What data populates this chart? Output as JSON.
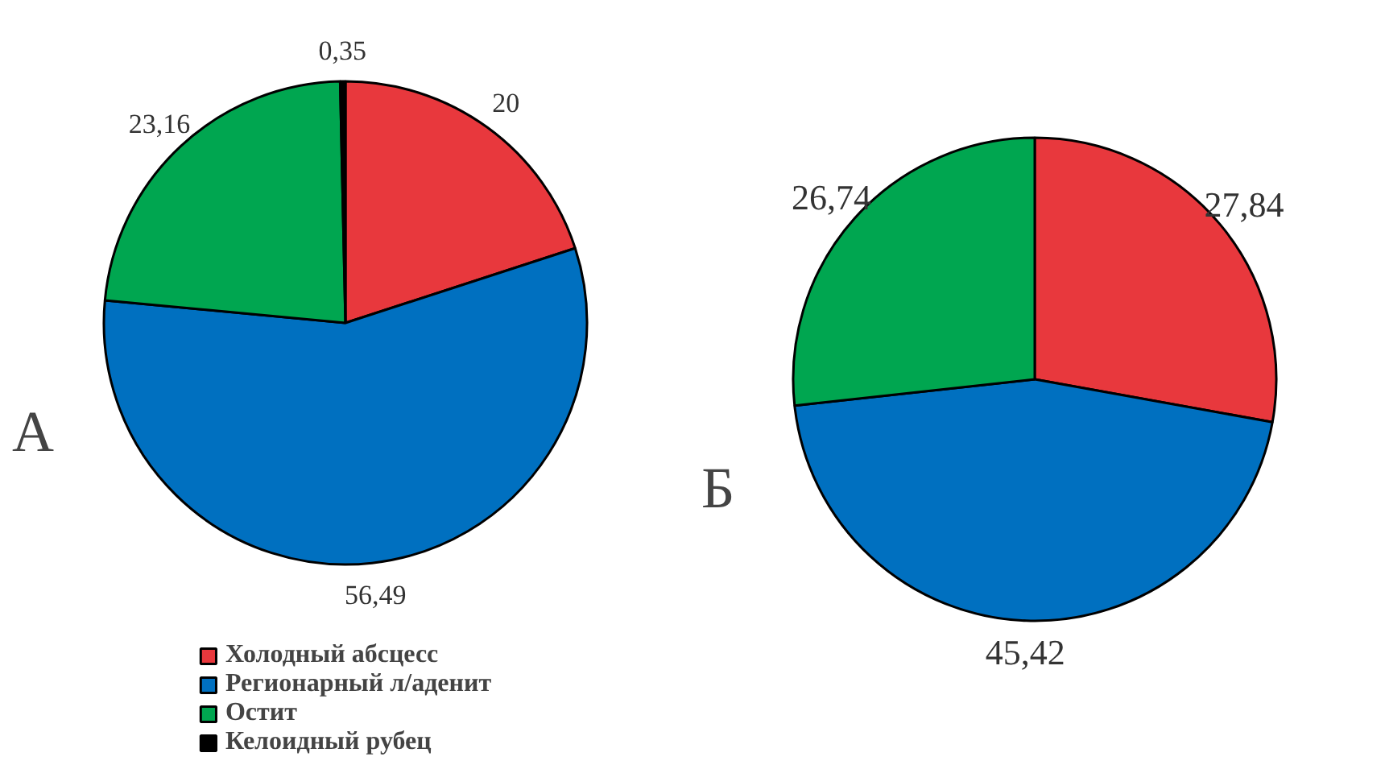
{
  "chart_data": [
    {
      "type": "pie",
      "title": "А",
      "categories": [
        "Холодный абсцесс",
        "Регионарный л/аденит",
        "Остит",
        "Келоидный рубец"
      ],
      "values": [
        20,
        56.49,
        23.16,
        0.35
      ],
      "value_labels": [
        "20",
        "56,49",
        "23,16",
        "0,35"
      ],
      "colors": [
        "#e8383d",
        "#0070c0",
        "#00a650",
        "#000000"
      ],
      "legend": "bottom"
    },
    {
      "type": "pie",
      "title": "Б",
      "categories": [
        null,
        null,
        null
      ],
      "values": [
        27.84,
        45.42,
        26.74
      ],
      "value_labels": [
        "27,84",
        "45,42",
        "26,74"
      ],
      "colors": [
        "#e8383d",
        "#0070c0",
        "#00a650"
      ]
    }
  ]
}
